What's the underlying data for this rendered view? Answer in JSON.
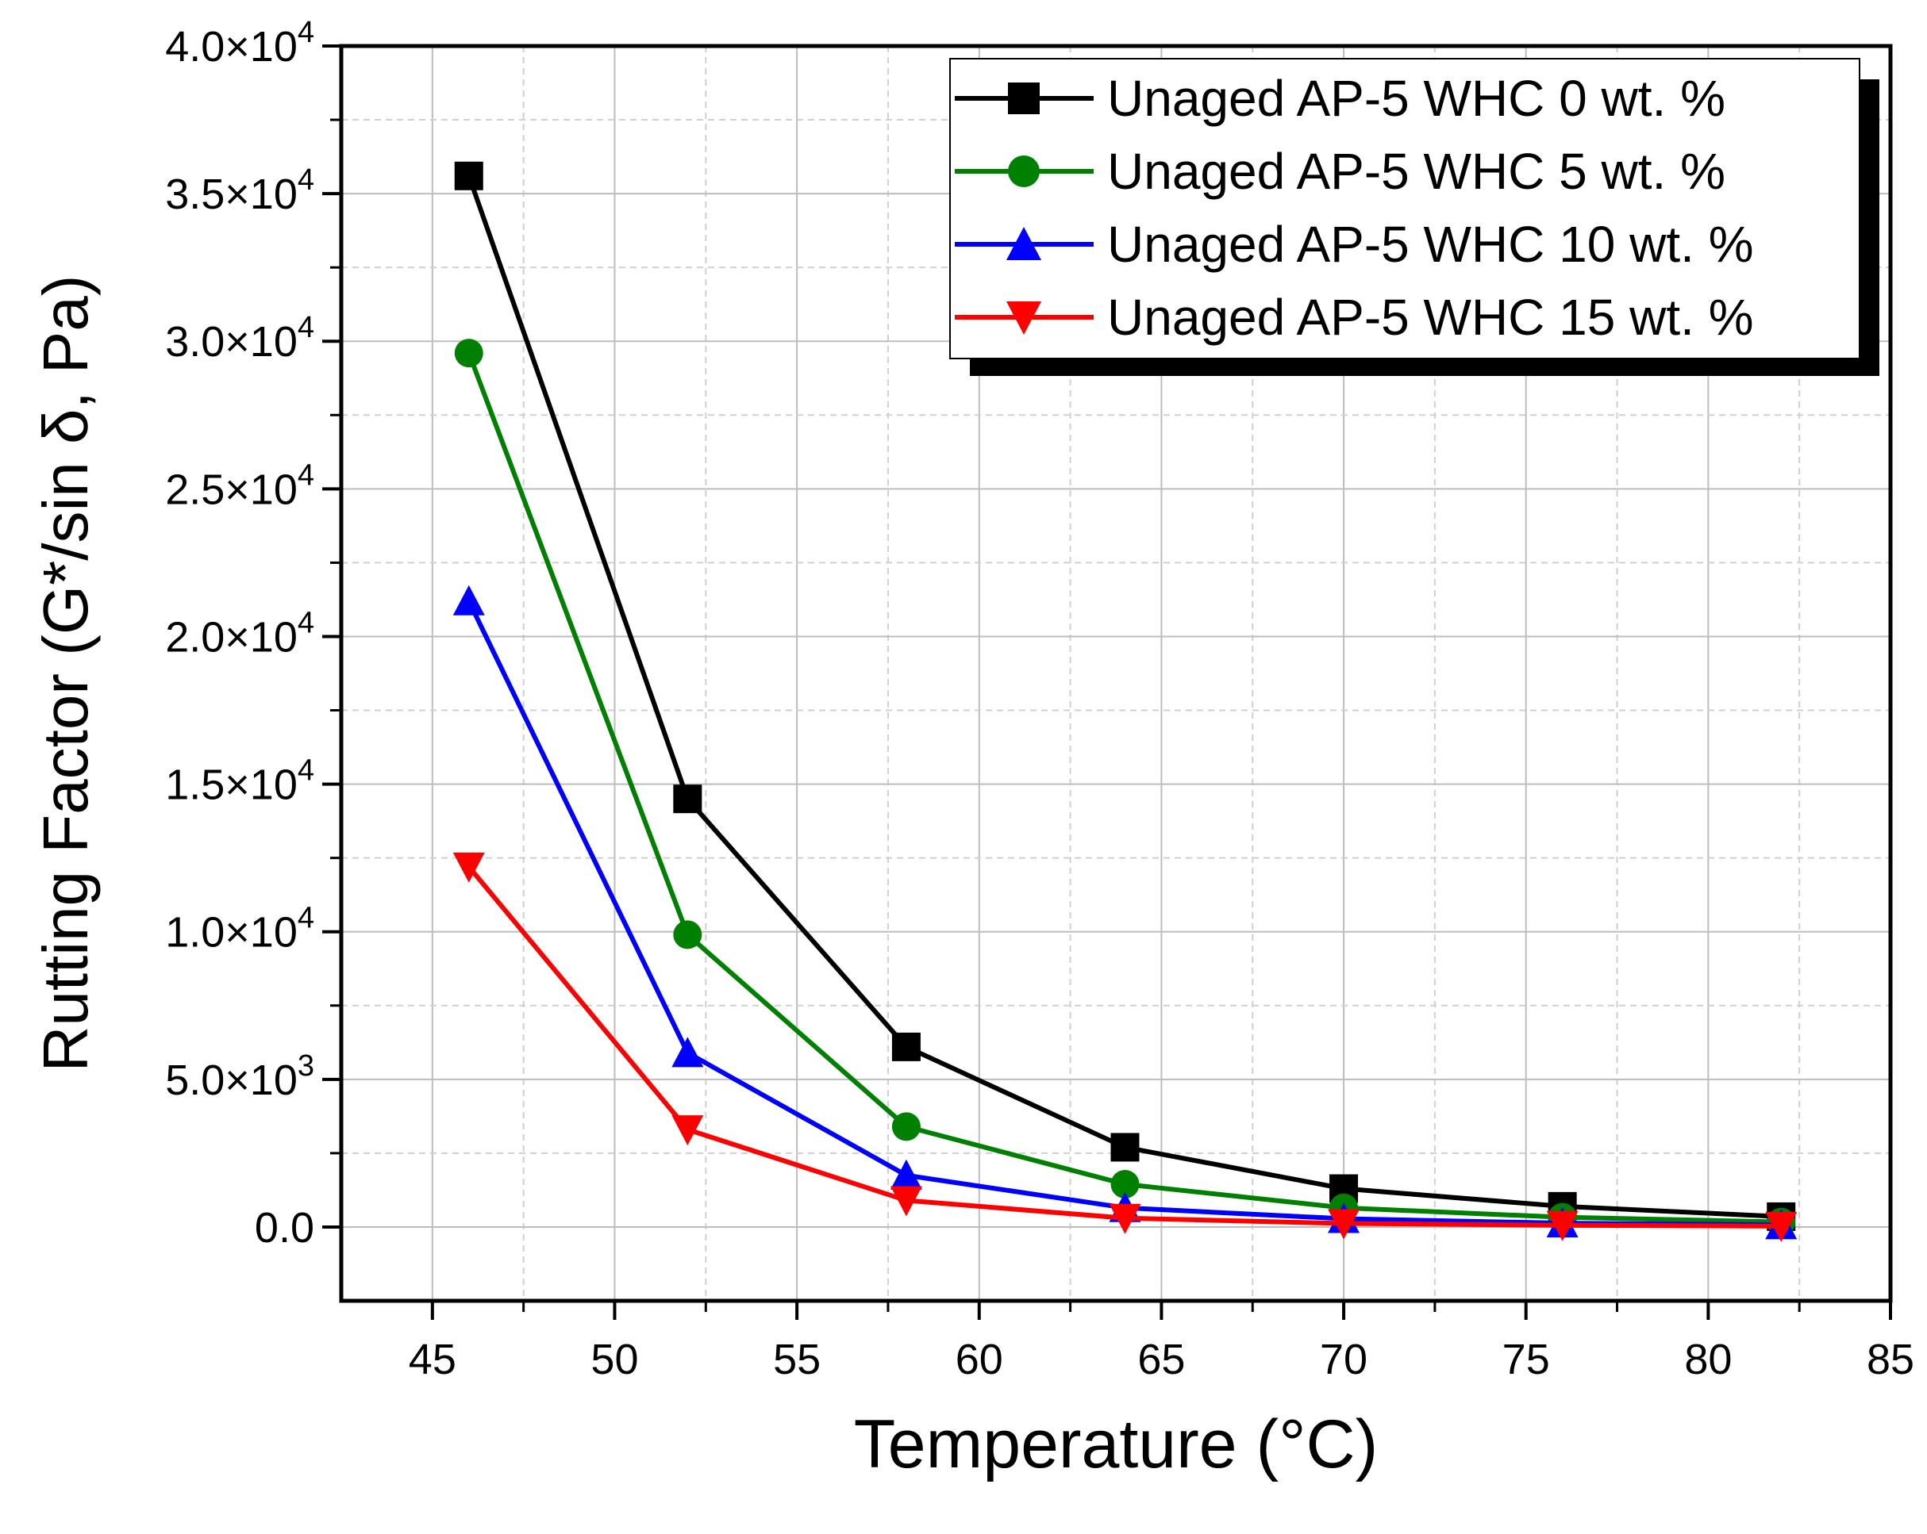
{
  "chart_data": {
    "type": "line",
    "title": "",
    "xlabel": "Temperature (°C)",
    "ylabel": "Rutting Factor (G*/sin δ, Pa)",
    "xlim": [
      42.5,
      85
    ],
    "ylim": [
      -2500,
      40000
    ],
    "grid": true,
    "legend_position": "top-right",
    "x_ticks": [
      45,
      50,
      55,
      60,
      65,
      70,
      75,
      80,
      85
    ],
    "x_tick_labels": [
      "45",
      "50",
      "55",
      "60",
      "65",
      "70",
      "75",
      "80",
      "85"
    ],
    "y_ticks": [
      {
        "value": 0,
        "mantissa": "0.0",
        "exponent": ""
      },
      {
        "value": 5000,
        "mantissa": "5.0×10",
        "exponent": "3"
      },
      {
        "value": 10000,
        "mantissa": "1.0×10",
        "exponent": "4"
      },
      {
        "value": 15000,
        "mantissa": "1.5×10",
        "exponent": "4"
      },
      {
        "value": 20000,
        "mantissa": "2.0×10",
        "exponent": "4"
      },
      {
        "value": 25000,
        "mantissa": "2.5×10",
        "exponent": "4"
      },
      {
        "value": 30000,
        "mantissa": "3.0×10",
        "exponent": "4"
      },
      {
        "value": 35000,
        "mantissa": "3.5×10",
        "exponent": "4"
      },
      {
        "value": 40000,
        "mantissa": "4.0×10",
        "exponent": "4"
      }
    ],
    "x": [
      46,
      52,
      58,
      64,
      70,
      76,
      82
    ],
    "series": [
      {
        "name": "Unaged AP-5 WHC 0 wt. %",
        "color": "#000000",
        "marker": "square",
        "values": [
          35600,
          14500,
          6100,
          2700,
          1300,
          700,
          350
        ]
      },
      {
        "name": "Unaged AP-5 WHC 5 wt. %",
        "color": "#008000",
        "marker": "circle",
        "values": [
          29600,
          9900,
          3400,
          1450,
          650,
          330,
          170
        ]
      },
      {
        "name": "Unaged AP-5 WHC 10 wt. %",
        "color": "#0000FF",
        "marker": "triangle-up",
        "values": [
          21200,
          5900,
          1750,
          650,
          280,
          130,
          70
        ]
      },
      {
        "name": "Unaged AP-5 WHC 15 wt. %",
        "color": "#FF0000",
        "marker": "triangle-down",
        "values": [
          12200,
          3300,
          900,
          300,
          120,
          60,
          30
        ]
      }
    ]
  }
}
